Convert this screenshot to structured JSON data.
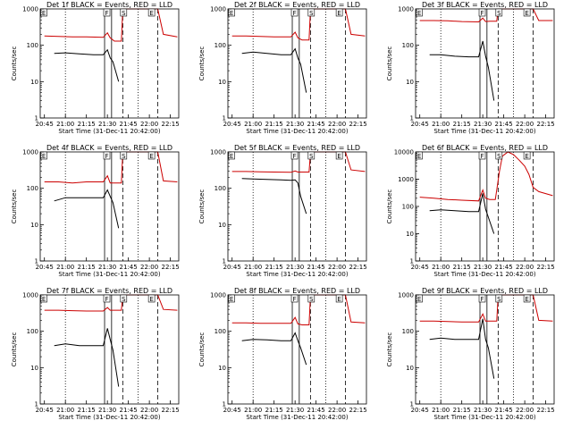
{
  "chart_data": [
    {
      "type": "line",
      "title": "Det 1f BLACK = Events, RED = LLD",
      "xlabel": "Start Time (31-Dec-11 20:42:00)",
      "ylabel": "Counts/sec",
      "y_scale": "log",
      "ylim": [
        1,
        1000
      ],
      "y_ticks": [
        "1",
        "10",
        "100",
        "1000"
      ],
      "x_ticks": [
        "20:45",
        "21:00",
        "21:15",
        "21:30",
        "21:45",
        "22:00",
        "22:15"
      ],
      "x_range": [
        "20:42",
        "22:21"
      ],
      "markers": [
        "E",
        "F",
        "S",
        "E"
      ],
      "series": [
        {
          "color": "#000000",
          "x": [
            "20:52",
            "21:00",
            "21:10",
            "21:20",
            "21:27",
            "21:30",
            "21:32",
            "21:34",
            "21:38"
          ],
          "values": [
            60,
            62,
            58,
            55,
            55,
            75,
            45,
            35,
            10
          ]
        },
        {
          "color": "#cc0000",
          "x": [
            "20:45",
            "20:55",
            "21:05",
            "21:15",
            "21:27",
            "21:30",
            "21:32",
            "21:35",
            "21:40",
            "21:41",
            "21:43",
            "22:00",
            "22:06",
            "22:10",
            "22:20"
          ],
          "values": [
            180,
            175,
            170,
            170,
            165,
            220,
            160,
            130,
            130,
            1000,
            1000,
            1000,
            1000,
            200,
            170
          ]
        }
      ]
    },
    {
      "type": "line",
      "title": "Det 2f BLACK = Events, RED = LLD",
      "xlabel": "Start Time (31-Dec-11 20:42:00)",
      "ylabel": "Counts/sec",
      "y_scale": "log",
      "ylim": [
        1,
        1000
      ],
      "y_ticks": [
        "1",
        "10",
        "100",
        "1000"
      ],
      "x_ticks": [
        "20:45",
        "21:00",
        "21:15",
        "21:30",
        "21:45",
        "22:00",
        "22:15"
      ],
      "x_range": [
        "20:42",
        "22:21"
      ],
      "markers": [
        "E",
        "F",
        "S",
        "E"
      ],
      "series": [
        {
          "color": "#000000",
          "x": [
            "20:52",
            "21:00",
            "21:10",
            "21:20",
            "21:27",
            "21:30",
            "21:32",
            "21:34",
            "21:38"
          ],
          "values": [
            60,
            65,
            60,
            55,
            55,
            80,
            45,
            30,
            5
          ]
        },
        {
          "color": "#cc0000",
          "x": [
            "20:45",
            "20:55",
            "21:05",
            "21:15",
            "21:27",
            "21:30",
            "21:32",
            "21:35",
            "21:40",
            "21:41",
            "21:43",
            "22:00",
            "22:06",
            "22:10",
            "22:20"
          ],
          "values": [
            180,
            180,
            175,
            170,
            170,
            230,
            160,
            140,
            140,
            1000,
            1000,
            1000,
            1000,
            200,
            180
          ]
        }
      ]
    },
    {
      "type": "line",
      "title": "Det 3f BLACK = Events, RED = LLD",
      "xlabel": "Start Time (31-Dec-11 20:42:00)",
      "ylabel": "Counts/sec",
      "y_scale": "log",
      "ylim": [
        1,
        1000
      ],
      "y_ticks": [
        "1",
        "10",
        "100",
        "1000"
      ],
      "x_ticks": [
        "20:45",
        "21:00",
        "21:15",
        "21:30",
        "21:45",
        "22:00",
        "22:15"
      ],
      "x_range": [
        "20:42",
        "22:21"
      ],
      "markers": [
        "E",
        "F",
        "S",
        "E"
      ],
      "series": [
        {
          "color": "#000000",
          "x": [
            "20:52",
            "21:00",
            "21:10",
            "21:20",
            "21:27",
            "21:30",
            "21:32",
            "21:34",
            "21:38"
          ],
          "values": [
            55,
            55,
            50,
            48,
            48,
            130,
            50,
            25,
            3
          ]
        },
        {
          "color": "#cc0000",
          "x": [
            "20:45",
            "20:55",
            "21:05",
            "21:15",
            "21:27",
            "21:30",
            "21:32",
            "21:35",
            "21:40",
            "21:41",
            "21:43",
            "22:00",
            "22:06",
            "22:10",
            "22:20"
          ],
          "values": [
            480,
            480,
            470,
            450,
            440,
            560,
            450,
            460,
            460,
            1000,
            1000,
            1000,
            1000,
            480,
            480
          ]
        }
      ]
    },
    {
      "type": "line",
      "title": "Det 4f BLACK = Events, RED = LLD",
      "xlabel": "Start Time (31-Dec-11 20:42:00)",
      "ylabel": "Counts/sec",
      "y_scale": "log",
      "ylim": [
        1,
        1000
      ],
      "y_ticks": [
        "1",
        "10",
        "100",
        "1000"
      ],
      "x_ticks": [
        "20:45",
        "21:00",
        "21:15",
        "21:30",
        "21:45",
        "22:00",
        "22:15"
      ],
      "x_range": [
        "20:42",
        "22:21"
      ],
      "markers": [
        "E",
        "F",
        "S",
        "E"
      ],
      "series": [
        {
          "color": "#000000",
          "x": [
            "20:52",
            "21:00",
            "21:10",
            "21:20",
            "21:27",
            "21:30",
            "21:32",
            "21:34",
            "21:38"
          ],
          "values": [
            45,
            55,
            55,
            55,
            55,
            90,
            60,
            40,
            8
          ]
        },
        {
          "color": "#cc0000",
          "x": [
            "20:45",
            "20:55",
            "21:05",
            "21:15",
            "21:27",
            "21:30",
            "21:32",
            "21:35",
            "21:40",
            "21:41",
            "21:43",
            "22:00",
            "22:06",
            "22:10",
            "22:20"
          ],
          "values": [
            150,
            150,
            140,
            150,
            150,
            220,
            140,
            140,
            140,
            1000,
            1000,
            1000,
            1000,
            160,
            150
          ]
        }
      ]
    },
    {
      "type": "line",
      "title": "Det 5f BLACK = Events, RED = LLD",
      "xlabel": "Start Time (31-Dec-11 20:42:00)",
      "ylabel": "Counts/sec",
      "y_scale": "log",
      "ylim": [
        1,
        1000
      ],
      "y_ticks": [
        "1",
        "10",
        "100",
        "1000"
      ],
      "x_ticks": [
        "20:45",
        "21:00",
        "21:15",
        "21:30",
        "21:45",
        "22:00",
        "22:15"
      ],
      "x_range": [
        "20:42",
        "22:21"
      ],
      "markers": [
        "E",
        "F",
        "S",
        "E"
      ],
      "series": [
        {
          "color": "#000000",
          "x": [
            "20:52",
            "21:00",
            "21:10",
            "21:20",
            "21:27",
            "21:30",
            "21:32",
            "21:34",
            "21:38"
          ],
          "values": [
            185,
            180,
            175,
            170,
            165,
            170,
            140,
            60,
            20
          ]
        },
        {
          "color": "#cc0000",
          "x": [
            "20:45",
            "20:55",
            "21:05",
            "21:15",
            "21:27",
            "21:30",
            "21:32",
            "21:35",
            "21:40",
            "21:41",
            "21:43",
            "22:00",
            "22:06",
            "22:10",
            "22:20"
          ],
          "values": [
            290,
            290,
            285,
            280,
            275,
            300,
            280,
            280,
            280,
            1000,
            1000,
            1000,
            1000,
            320,
            290
          ]
        }
      ]
    },
    {
      "type": "line",
      "title": "Det 6f BLACK = Events, RED = LLD",
      "xlabel": "Start Time (31-Dec-11 20:42:00)",
      "ylabel": "Counts/sec",
      "y_scale": "log",
      "ylim": [
        1,
        10000
      ],
      "y_ticks": [
        "1",
        "10",
        "100",
        "1000",
        "10000"
      ],
      "x_ticks": [
        "20:45",
        "21:00",
        "21:15",
        "21:30",
        "21:45",
        "22:00",
        "22:15"
      ],
      "x_range": [
        "20:42",
        "22:21"
      ],
      "markers": [
        "E",
        "F",
        "S",
        "E"
      ],
      "series": [
        {
          "color": "#000000",
          "x": [
            "20:52",
            "21:00",
            "21:10",
            "21:20",
            "21:27",
            "21:30",
            "21:32",
            "21:34",
            "21:38"
          ],
          "values": [
            70,
            75,
            70,
            65,
            65,
            300,
            80,
            40,
            10
          ]
        },
        {
          "color": "#cc0000",
          "x": [
            "20:45",
            "20:55",
            "21:05",
            "21:15",
            "21:27",
            "21:30",
            "21:32",
            "21:35",
            "21:39",
            "21:40",
            "21:42",
            "21:44",
            "21:48",
            "21:52",
            "21:56",
            "22:00",
            "22:03",
            "22:06",
            "22:10",
            "22:20"
          ],
          "values": [
            220,
            200,
            180,
            170,
            160,
            400,
            200,
            180,
            180,
            400,
            2000,
            7000,
            10000,
            8000,
            5000,
            3000,
            1500,
            500,
            350,
            250
          ]
        }
      ]
    },
    {
      "type": "line",
      "title": "Det 7f BLACK = Events, RED = LLD",
      "xlabel": "Start Time (31-Dec-11 20:42:00)",
      "ylabel": "Counts/sec",
      "y_scale": "log",
      "ylim": [
        1,
        1000
      ],
      "y_ticks": [
        "1",
        "10",
        "100",
        "1000"
      ],
      "x_ticks": [
        "20:45",
        "21:00",
        "21:15",
        "21:30",
        "21:45",
        "22:00",
        "22:15"
      ],
      "x_range": [
        "20:42",
        "22:21"
      ],
      "markers": [
        "E",
        "F",
        "S",
        "E"
      ],
      "series": [
        {
          "color": "#000000",
          "x": [
            "20:52",
            "21:00",
            "21:10",
            "21:20",
            "21:27",
            "21:30",
            "21:32",
            "21:34",
            "21:38"
          ],
          "values": [
            40,
            45,
            40,
            40,
            40,
            120,
            60,
            30,
            3
          ]
        },
        {
          "color": "#cc0000",
          "x": [
            "20:45",
            "20:55",
            "21:05",
            "21:15",
            "21:27",
            "21:30",
            "21:32",
            "21:35",
            "21:40",
            "21:41",
            "21:43",
            "22:00",
            "22:06",
            "22:10",
            "22:20"
          ],
          "values": [
            380,
            380,
            370,
            360,
            360,
            450,
            380,
            380,
            380,
            1000,
            1000,
            1000,
            1000,
            400,
            380
          ]
        }
      ]
    },
    {
      "type": "line",
      "title": "Det 8f BLACK = Events, RED = LLD",
      "xlabel": "Start Time (31-Dec-11 20:42:00)",
      "ylabel": "Counts/sec",
      "y_scale": "log",
      "ylim": [
        1,
        1000
      ],
      "y_ticks": [
        "1",
        "10",
        "100",
        "1000"
      ],
      "x_ticks": [
        "20:45",
        "21:00",
        "21:15",
        "21:30",
        "21:45",
        "22:00",
        "22:15"
      ],
      "x_range": [
        "20:42",
        "22:21"
      ],
      "markers": [
        "E",
        "F",
        "S",
        "E"
      ],
      "series": [
        {
          "color": "#000000",
          "x": [
            "20:52",
            "21:00",
            "21:10",
            "21:20",
            "21:27",
            "21:30",
            "21:32",
            "21:34",
            "21:38"
          ],
          "values": [
            55,
            60,
            58,
            55,
            55,
            90,
            55,
            35,
            12
          ]
        },
        {
          "color": "#cc0000",
          "x": [
            "20:45",
            "20:55",
            "21:05",
            "21:15",
            "21:27",
            "21:30",
            "21:32",
            "21:35",
            "21:40",
            "21:41",
            "21:43",
            "22:00",
            "22:06",
            "22:10",
            "22:20"
          ],
          "values": [
            170,
            170,
            165,
            165,
            165,
            240,
            160,
            150,
            150,
            1000,
            1000,
            1000,
            1000,
            180,
            170
          ]
        }
      ]
    },
    {
      "type": "line",
      "title": "Det 9f BLACK = Events, RED = LLD",
      "xlabel": "Start Time (31-Dec-11 20:42:00)",
      "ylabel": "Counts/sec",
      "y_scale": "log",
      "ylim": [
        1,
        1000
      ],
      "y_ticks": [
        "1",
        "10",
        "100",
        "1000"
      ],
      "x_ticks": [
        "20:45",
        "21:00",
        "21:15",
        "21:30",
        "21:45",
        "22:00",
        "22:15"
      ],
      "x_range": [
        "20:42",
        "22:21"
      ],
      "markers": [
        "E",
        "F",
        "S",
        "E"
      ],
      "series": [
        {
          "color": "#000000",
          "x": [
            "20:52",
            "21:00",
            "21:10",
            "21:20",
            "21:27",
            "21:30",
            "21:32",
            "21:34",
            "21:38"
          ],
          "values": [
            60,
            65,
            60,
            60,
            60,
            220,
            60,
            35,
            5
          ]
        },
        {
          "color": "#cc0000",
          "x": [
            "20:45",
            "20:55",
            "21:05",
            "21:15",
            "21:27",
            "21:30",
            "21:32",
            "21:35",
            "21:40",
            "21:41",
            "21:43",
            "22:00",
            "22:06",
            "22:10",
            "22:20"
          ],
          "values": [
            190,
            190,
            185,
            180,
            180,
            300,
            190,
            190,
            190,
            1000,
            1000,
            1000,
            1000,
            200,
            190
          ]
        }
      ]
    }
  ]
}
